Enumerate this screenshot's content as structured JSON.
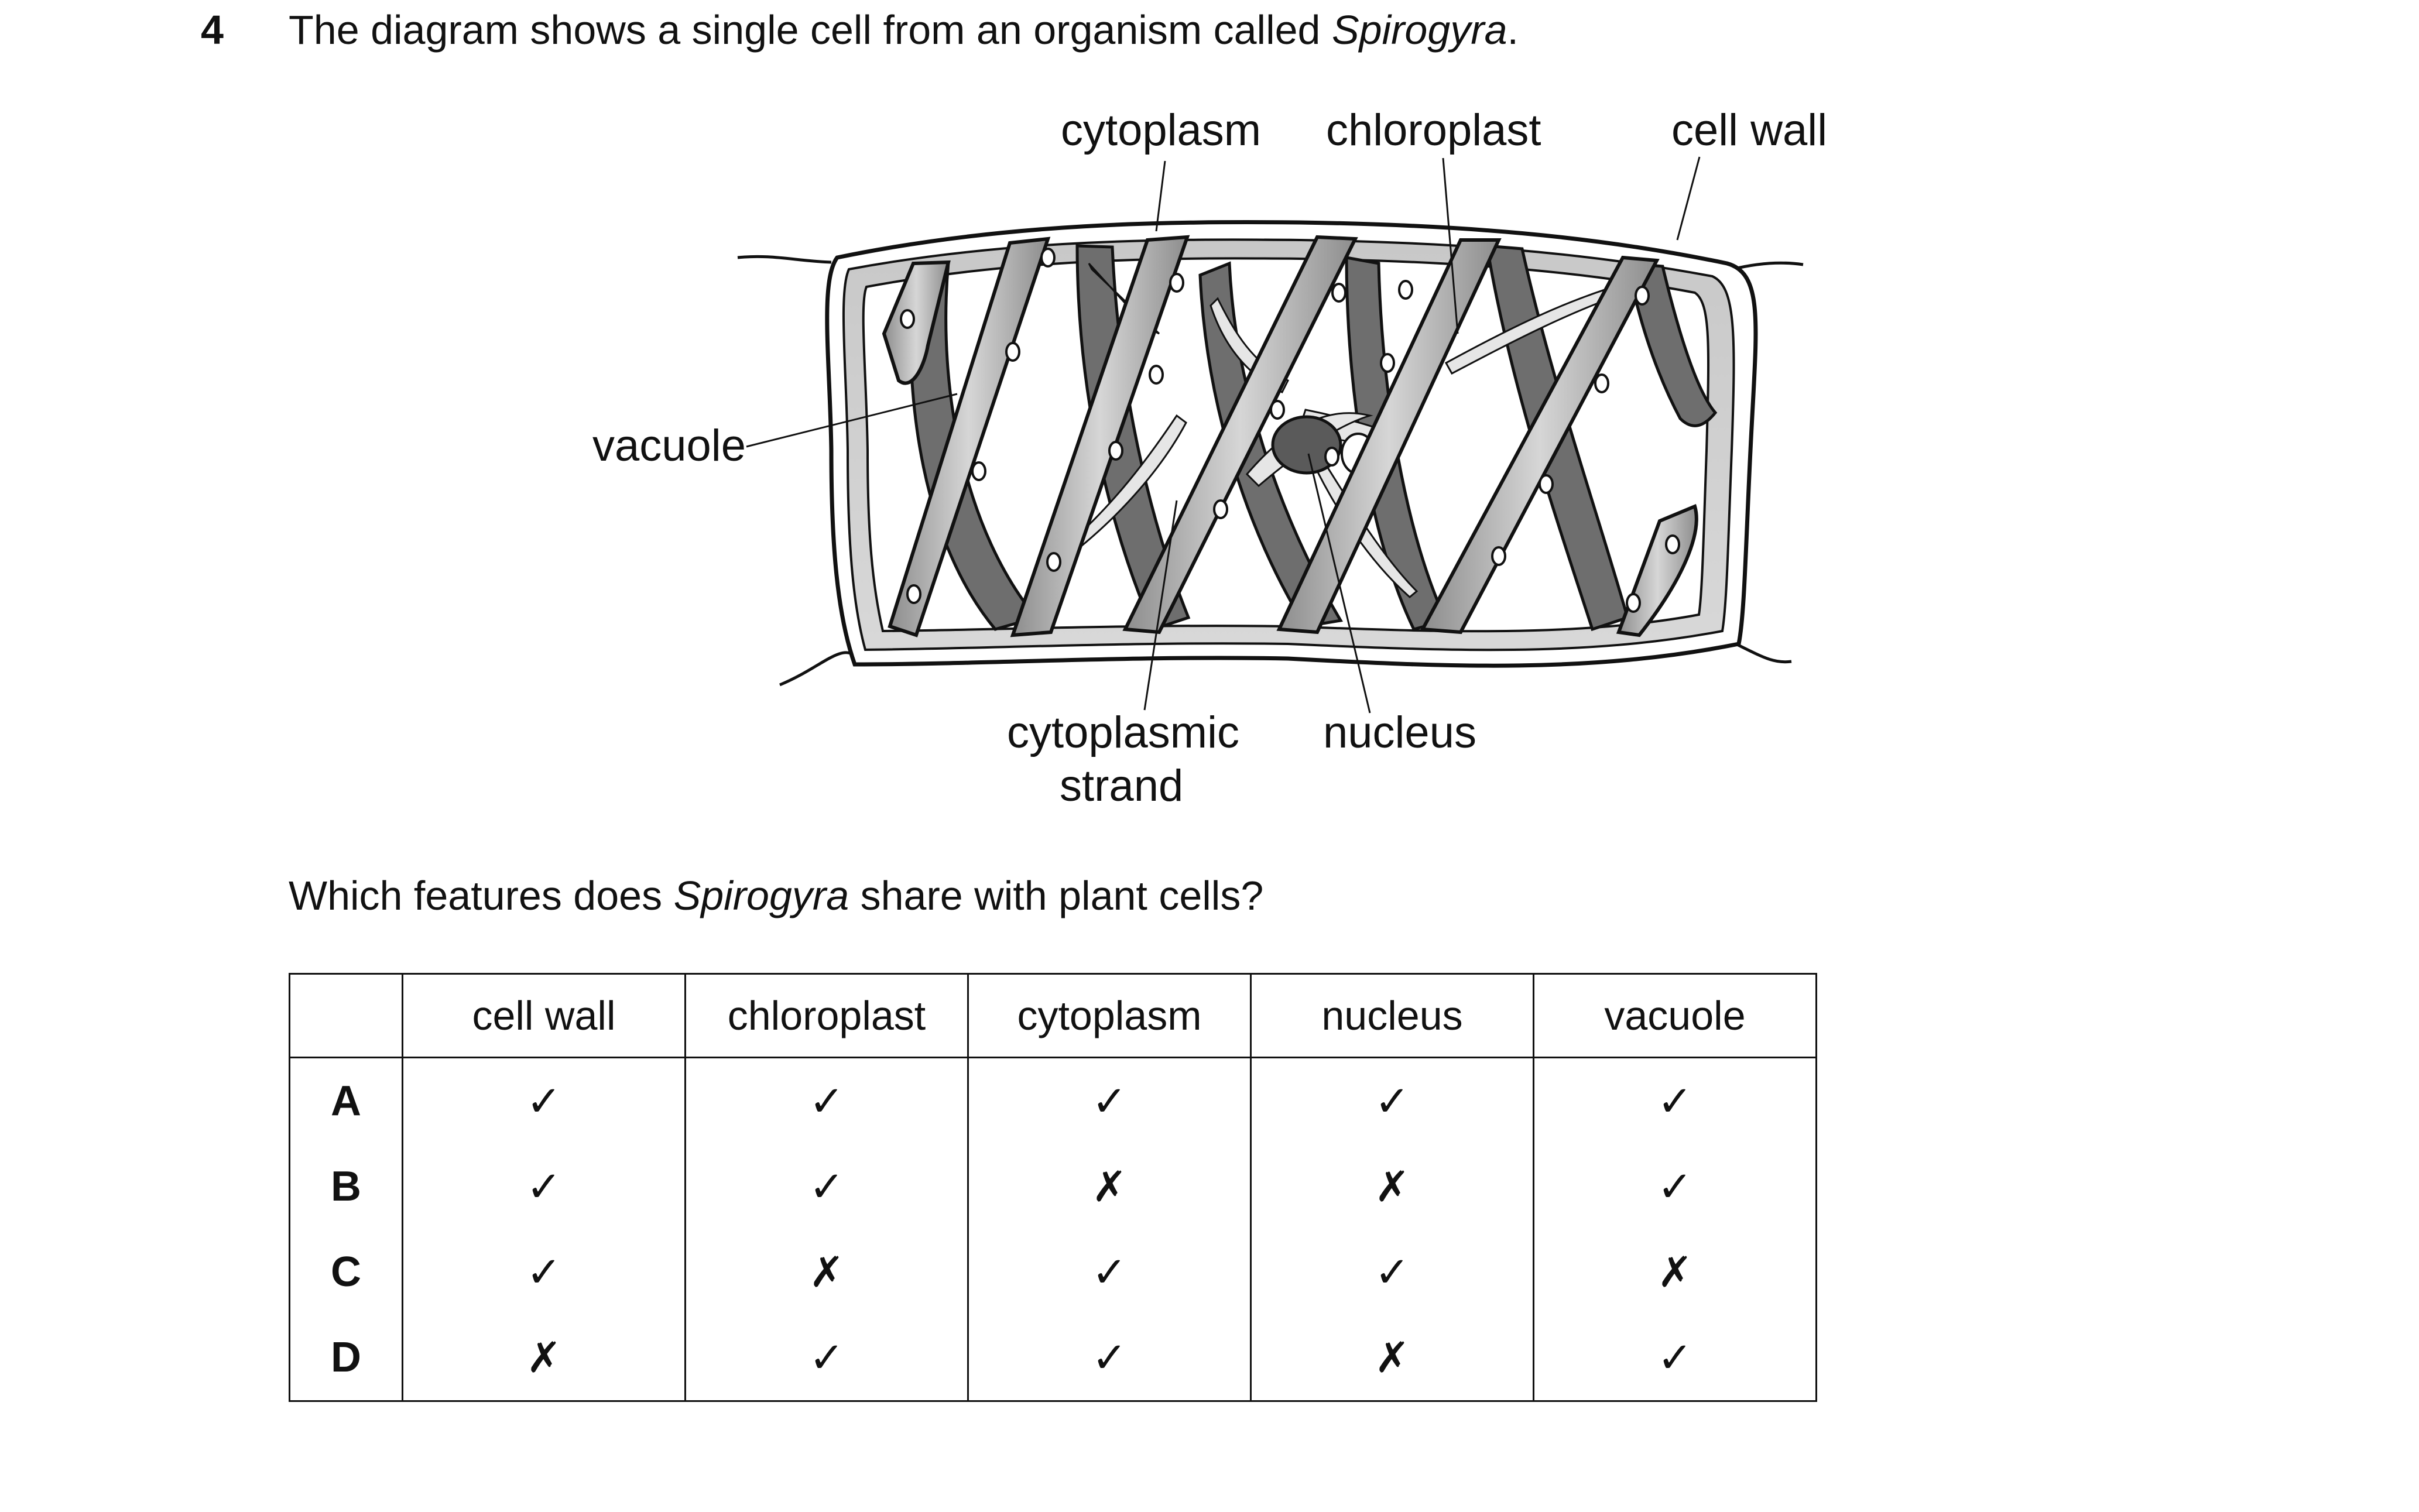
{
  "question": {
    "number": "4",
    "stem_before": "The diagram shows a single cell from an organism called ",
    "stem_italic": "Spirogyra",
    "stem_after": ".",
    "prompt_before": "Which features does ",
    "prompt_italic": "Spirogyra",
    "prompt_after": " share with plant cells?"
  },
  "diagram": {
    "labels": {
      "cytoplasm": "cytoplasm",
      "chloroplast": "chloroplast",
      "cell_wall": "cell wall",
      "vacuole": "vacuole",
      "cytoplasmic_line1": "cytoplasmic",
      "cytoplasmic_line2": "strand",
      "nucleus": "nucleus"
    }
  },
  "table": {
    "headers": [
      "cell wall",
      "chloroplast",
      "cytoplasm",
      "nucleus",
      "vacuole"
    ],
    "rows": [
      {
        "label": "A",
        "marks": [
          "✓",
          "✓",
          "✓",
          "✓",
          "✓"
        ]
      },
      {
        "label": "B",
        "marks": [
          "✓",
          "✓",
          "✗",
          "✗",
          "✓"
        ]
      },
      {
        "label": "C",
        "marks": [
          "✓",
          "✗",
          "✓",
          "✓",
          "✗"
        ]
      },
      {
        "label": "D",
        "marks": [
          "✗",
          "✓",
          "✓",
          "✗",
          "✓"
        ]
      }
    ]
  }
}
